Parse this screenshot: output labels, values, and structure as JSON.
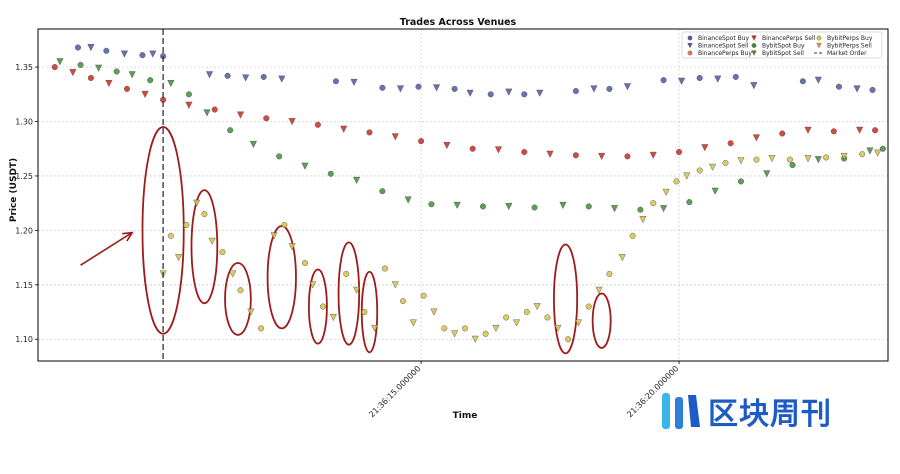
{
  "chart_data": {
    "type": "scatter",
    "title": "Trades Across Venues",
    "xlabel": "Time",
    "ylabel": "Price (USDT)",
    "ylim": [
      1.08,
      1.385
    ],
    "yticks": [
      1.1,
      1.15,
      1.2,
      1.25,
      1.3,
      1.35
    ],
    "ytick_labels": [
      "1.10",
      "1.15",
      "1.20",
      "1.25",
      "1.30",
      "1.35"
    ],
    "x_unit": "seconds",
    "xlim": [
      -4.85,
      28.1
    ],
    "xticks": [
      10,
      20
    ],
    "xtick_labels": [
      "21:36:15.000000",
      "21:36:20.000000"
    ],
    "grid": true,
    "legend_position": "top-right",
    "market_order_time": 0,
    "legend": [
      {
        "label": "BinanceSpot Buy",
        "color": "#4b5aa6",
        "marker": "circle"
      },
      {
        "label": "BinanceSpot Sell",
        "color": "#6a4aa0",
        "marker": "triangle-down"
      },
      {
        "label": "BinancePerps Buy",
        "color": "#e07a4a",
        "marker": "circle"
      },
      {
        "label": "BinancePerps Sell",
        "color": "#cc2a1e",
        "marker": "triangle-down"
      },
      {
        "label": "BybitSpot Buy",
        "color": "#3f8f3a",
        "marker": "circle"
      },
      {
        "label": "BybitSpot Sell",
        "color": "#4c8a1e",
        "marker": "triangle-down"
      },
      {
        "label": "BybitPerps Buy",
        "color": "#d4c24a",
        "marker": "circle"
      },
      {
        "label": "BybitPerps Sell",
        "color": "#e09a3a",
        "marker": "triangle-down"
      },
      {
        "label": "Market Order",
        "color": "#333333",
        "marker": "dashed-line"
      }
    ],
    "series": [
      {
        "name": "BinanceSpot",
        "color": "#4b5aa6",
        "points": [
          [
            -3.3,
            1.368
          ],
          [
            -2.8,
            1.368
          ],
          [
            -2.2,
            1.365
          ],
          [
            -1.5,
            1.362
          ],
          [
            -0.8,
            1.361
          ],
          [
            -0.4,
            1.362
          ],
          [
            0.0,
            1.36
          ],
          [
            1.8,
            1.343
          ],
          [
            2.5,
            1.342
          ],
          [
            3.2,
            1.34
          ],
          [
            3.9,
            1.341
          ],
          [
            4.6,
            1.339
          ],
          [
            6.7,
            1.337
          ],
          [
            7.4,
            1.336
          ],
          [
            8.5,
            1.331
          ],
          [
            9.2,
            1.33
          ],
          [
            9.9,
            1.332
          ],
          [
            10.6,
            1.331
          ],
          [
            11.3,
            1.33
          ],
          [
            11.9,
            1.326
          ],
          [
            12.7,
            1.325
          ],
          [
            13.4,
            1.327
          ],
          [
            14.0,
            1.325
          ],
          [
            14.6,
            1.326
          ],
          [
            16.0,
            1.328
          ],
          [
            16.7,
            1.33
          ],
          [
            17.3,
            1.33
          ],
          [
            18.0,
            1.332
          ],
          [
            19.4,
            1.338
          ],
          [
            20.1,
            1.337
          ],
          [
            20.8,
            1.34
          ],
          [
            21.5,
            1.339
          ],
          [
            22.2,
            1.341
          ],
          [
            22.9,
            1.333
          ],
          [
            24.8,
            1.337
          ],
          [
            25.4,
            1.338
          ],
          [
            26.2,
            1.332
          ],
          [
            26.9,
            1.33
          ],
          [
            27.5,
            1.329
          ]
        ]
      },
      {
        "name": "BybitSpot",
        "color": "#3f8f3a",
        "points": [
          [
            -4.0,
            1.355
          ],
          [
            -3.2,
            1.352
          ],
          [
            -2.5,
            1.349
          ],
          [
            -1.8,
            1.346
          ],
          [
            -1.2,
            1.343
          ],
          [
            -0.5,
            1.338
          ],
          [
            0.3,
            1.335
          ],
          [
            1.0,
            1.325
          ],
          [
            1.7,
            1.308
          ],
          [
            2.6,
            1.292
          ],
          [
            3.5,
            1.279
          ],
          [
            4.5,
            1.268
          ],
          [
            5.5,
            1.259
          ],
          [
            6.5,
            1.252
          ],
          [
            7.5,
            1.246
          ],
          [
            8.5,
            1.236
          ],
          [
            9.5,
            1.228
          ],
          [
            10.4,
            1.224
          ],
          [
            11.4,
            1.223
          ],
          [
            12.4,
            1.222
          ],
          [
            13.4,
            1.222
          ],
          [
            14.4,
            1.221
          ],
          [
            15.5,
            1.223
          ],
          [
            16.5,
            1.222
          ],
          [
            17.5,
            1.22
          ],
          [
            18.5,
            1.219
          ],
          [
            19.4,
            1.22
          ],
          [
            20.4,
            1.226
          ],
          [
            21.4,
            1.236
          ],
          [
            22.4,
            1.245
          ],
          [
            23.4,
            1.252
          ],
          [
            24.4,
            1.26
          ],
          [
            25.4,
            1.265
          ],
          [
            26.4,
            1.266
          ],
          [
            27.4,
            1.273
          ],
          [
            27.9,
            1.275
          ]
        ]
      },
      {
        "name": "BinancePerps",
        "color": "#cc2a1e",
        "points": [
          [
            -4.2,
            1.35
          ],
          [
            -3.5,
            1.345
          ],
          [
            -2.8,
            1.34
          ],
          [
            -2.1,
            1.335
          ],
          [
            -1.4,
            1.33
          ],
          [
            -0.7,
            1.325
          ],
          [
            0.0,
            1.32
          ],
          [
            1.0,
            1.315
          ],
          [
            2.0,
            1.311
          ],
          [
            3.0,
            1.306
          ],
          [
            4.0,
            1.303
          ],
          [
            5.0,
            1.3
          ],
          [
            6.0,
            1.297
          ],
          [
            7.0,
            1.293
          ],
          [
            8.0,
            1.29
          ],
          [
            9.0,
            1.286
          ],
          [
            10.0,
            1.282
          ],
          [
            11.0,
            1.278
          ],
          [
            12.0,
            1.275
          ],
          [
            13.0,
            1.274
          ],
          [
            14.0,
            1.272
          ],
          [
            15.0,
            1.27
          ],
          [
            16.0,
            1.269
          ],
          [
            17.0,
            1.268
          ],
          [
            18.0,
            1.268
          ],
          [
            19.0,
            1.269
          ],
          [
            20.0,
            1.272
          ],
          [
            21.0,
            1.276
          ],
          [
            22.0,
            1.28
          ],
          [
            23.0,
            1.285
          ],
          [
            24.0,
            1.289
          ],
          [
            25.0,
            1.292
          ],
          [
            26.0,
            1.291
          ],
          [
            27.0,
            1.292
          ],
          [
            27.6,
            1.292
          ]
        ]
      },
      {
        "name": "BybitPerps",
        "color": "#d4c24a",
        "points": [
          [
            0.0,
            1.16
          ],
          [
            0.3,
            1.195
          ],
          [
            0.6,
            1.175
          ],
          [
            0.9,
            1.205
          ],
          [
            1.3,
            1.225
          ],
          [
            1.6,
            1.215
          ],
          [
            1.9,
            1.19
          ],
          [
            2.3,
            1.18
          ],
          [
            2.7,
            1.16
          ],
          [
            3.0,
            1.145
          ],
          [
            3.4,
            1.125
          ],
          [
            3.8,
            1.11
          ],
          [
            4.3,
            1.195
          ],
          [
            4.7,
            1.205
          ],
          [
            5.0,
            1.185
          ],
          [
            5.5,
            1.17
          ],
          [
            5.8,
            1.15
          ],
          [
            6.2,
            1.13
          ],
          [
            6.6,
            1.12
          ],
          [
            7.1,
            1.16
          ],
          [
            7.5,
            1.145
          ],
          [
            7.8,
            1.125
          ],
          [
            8.2,
            1.11
          ],
          [
            8.6,
            1.165
          ],
          [
            9.0,
            1.15
          ],
          [
            9.3,
            1.135
          ],
          [
            9.7,
            1.115
          ],
          [
            10.1,
            1.14
          ],
          [
            10.5,
            1.125
          ],
          [
            10.9,
            1.11
          ],
          [
            11.3,
            1.105
          ],
          [
            11.7,
            1.11
          ],
          [
            12.1,
            1.1
          ],
          [
            12.5,
            1.105
          ],
          [
            12.9,
            1.11
          ],
          [
            13.3,
            1.12
          ],
          [
            13.7,
            1.115
          ],
          [
            14.1,
            1.125
          ],
          [
            14.5,
            1.13
          ],
          [
            14.9,
            1.12
          ],
          [
            15.3,
            1.11
          ],
          [
            15.7,
            1.1
          ],
          [
            16.1,
            1.115
          ],
          [
            16.5,
            1.13
          ],
          [
            16.9,
            1.145
          ],
          [
            17.3,
            1.16
          ],
          [
            17.8,
            1.175
          ],
          [
            18.2,
            1.195
          ],
          [
            18.6,
            1.21
          ],
          [
            19.0,
            1.225
          ],
          [
            19.5,
            1.235
          ],
          [
            19.9,
            1.245
          ],
          [
            20.3,
            1.25
          ],
          [
            20.8,
            1.255
          ],
          [
            21.3,
            1.258
          ],
          [
            21.8,
            1.262
          ],
          [
            22.4,
            1.264
          ],
          [
            23.0,
            1.265
          ],
          [
            23.6,
            1.266
          ],
          [
            24.3,
            1.265
          ],
          [
            25.0,
            1.266
          ],
          [
            25.7,
            1.267
          ],
          [
            26.4,
            1.268
          ],
          [
            27.1,
            1.27
          ],
          [
            27.7,
            1.271
          ]
        ]
      }
    ],
    "annotations": [
      {
        "type": "ellipse",
        "cx": 0.0,
        "cy": 1.2,
        "rx": 0.8,
        "ry": 0.095
      },
      {
        "type": "ellipse",
        "cx": 1.6,
        "cy": 1.185,
        "rx": 0.5,
        "ry": 0.052
      },
      {
        "type": "ellipse",
        "cx": 2.9,
        "cy": 1.137,
        "rx": 0.5,
        "ry": 0.033
      },
      {
        "type": "ellipse",
        "cx": 4.6,
        "cy": 1.157,
        "rx": 0.55,
        "ry": 0.047
      },
      {
        "type": "ellipse",
        "cx": 6.0,
        "cy": 1.13,
        "rx": 0.35,
        "ry": 0.034
      },
      {
        "type": "ellipse",
        "cx": 7.2,
        "cy": 1.142,
        "rx": 0.4,
        "ry": 0.047
      },
      {
        "type": "ellipse",
        "cx": 8.0,
        "cy": 1.125,
        "rx": 0.3,
        "ry": 0.037
      },
      {
        "type": "ellipse",
        "cx": 15.6,
        "cy": 1.137,
        "rx": 0.45,
        "ry": 0.05
      },
      {
        "type": "ellipse",
        "cx": 17.0,
        "cy": 1.117,
        "rx": 0.35,
        "ry": 0.025
      },
      {
        "type": "arrow",
        "from": [
          -3.2,
          1.168
        ],
        "to": [
          -1.2,
          1.198
        ]
      }
    ]
  },
  "watermark": {
    "text": "区块周刊",
    "icon": "bars-logo"
  }
}
